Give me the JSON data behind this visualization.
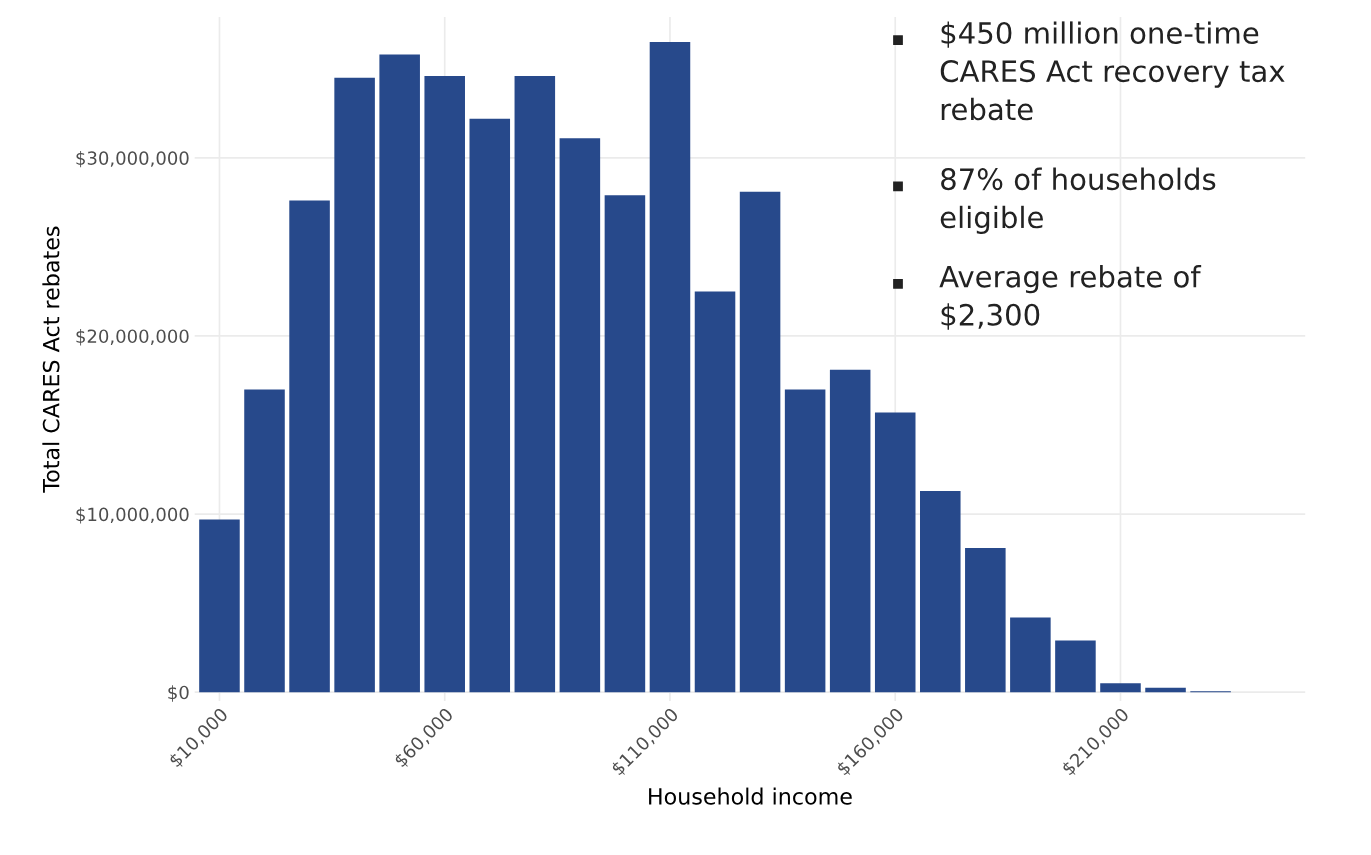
{
  "chart_data": {
    "type": "bar",
    "xlabel": "Household income",
    "ylabel": "Total CARES Act rebates",
    "x": [
      10000,
      20000,
      30000,
      40000,
      50000,
      60000,
      70000,
      80000,
      90000,
      100000,
      110000,
      120000,
      130000,
      140000,
      150000,
      160000,
      170000,
      180000,
      190000,
      200000,
      210000,
      220000,
      230000
    ],
    "values": [
      9700000,
      17000000,
      27600000,
      34500000,
      35800000,
      34600000,
      32200000,
      34600000,
      31100000,
      27900000,
      36500000,
      22500000,
      28100000,
      17000000,
      18100000,
      15700000,
      11300000,
      8100000,
      4200000,
      2900000,
      500000,
      250000,
      50000
    ],
    "color": "#27498b",
    "xlim": [
      4500,
      251000
    ],
    "ylim": [
      -500000,
      37900000
    ],
    "xticks": [
      {
        "value": 10000,
        "label": "$10,000"
      },
      {
        "value": 60000,
        "label": "$60,000"
      },
      {
        "value": 110000,
        "label": "$110,000"
      },
      {
        "value": 160000,
        "label": "$160,000"
      },
      {
        "value": 210000,
        "label": "$210,000"
      }
    ],
    "yticks": [
      {
        "value": 0,
        "label": "$0"
      },
      {
        "value": 10000000,
        "label": "$10,000,000"
      },
      {
        "value": 20000000,
        "label": "$20,000,000"
      },
      {
        "value": 30000000,
        "label": "$30,000,000"
      }
    ],
    "grid": true,
    "annotations": [
      "$450 million one-time CARES Act recovery tax rebate",
      "87% of households eligible",
      "Average rebate of $2,300"
    ]
  }
}
